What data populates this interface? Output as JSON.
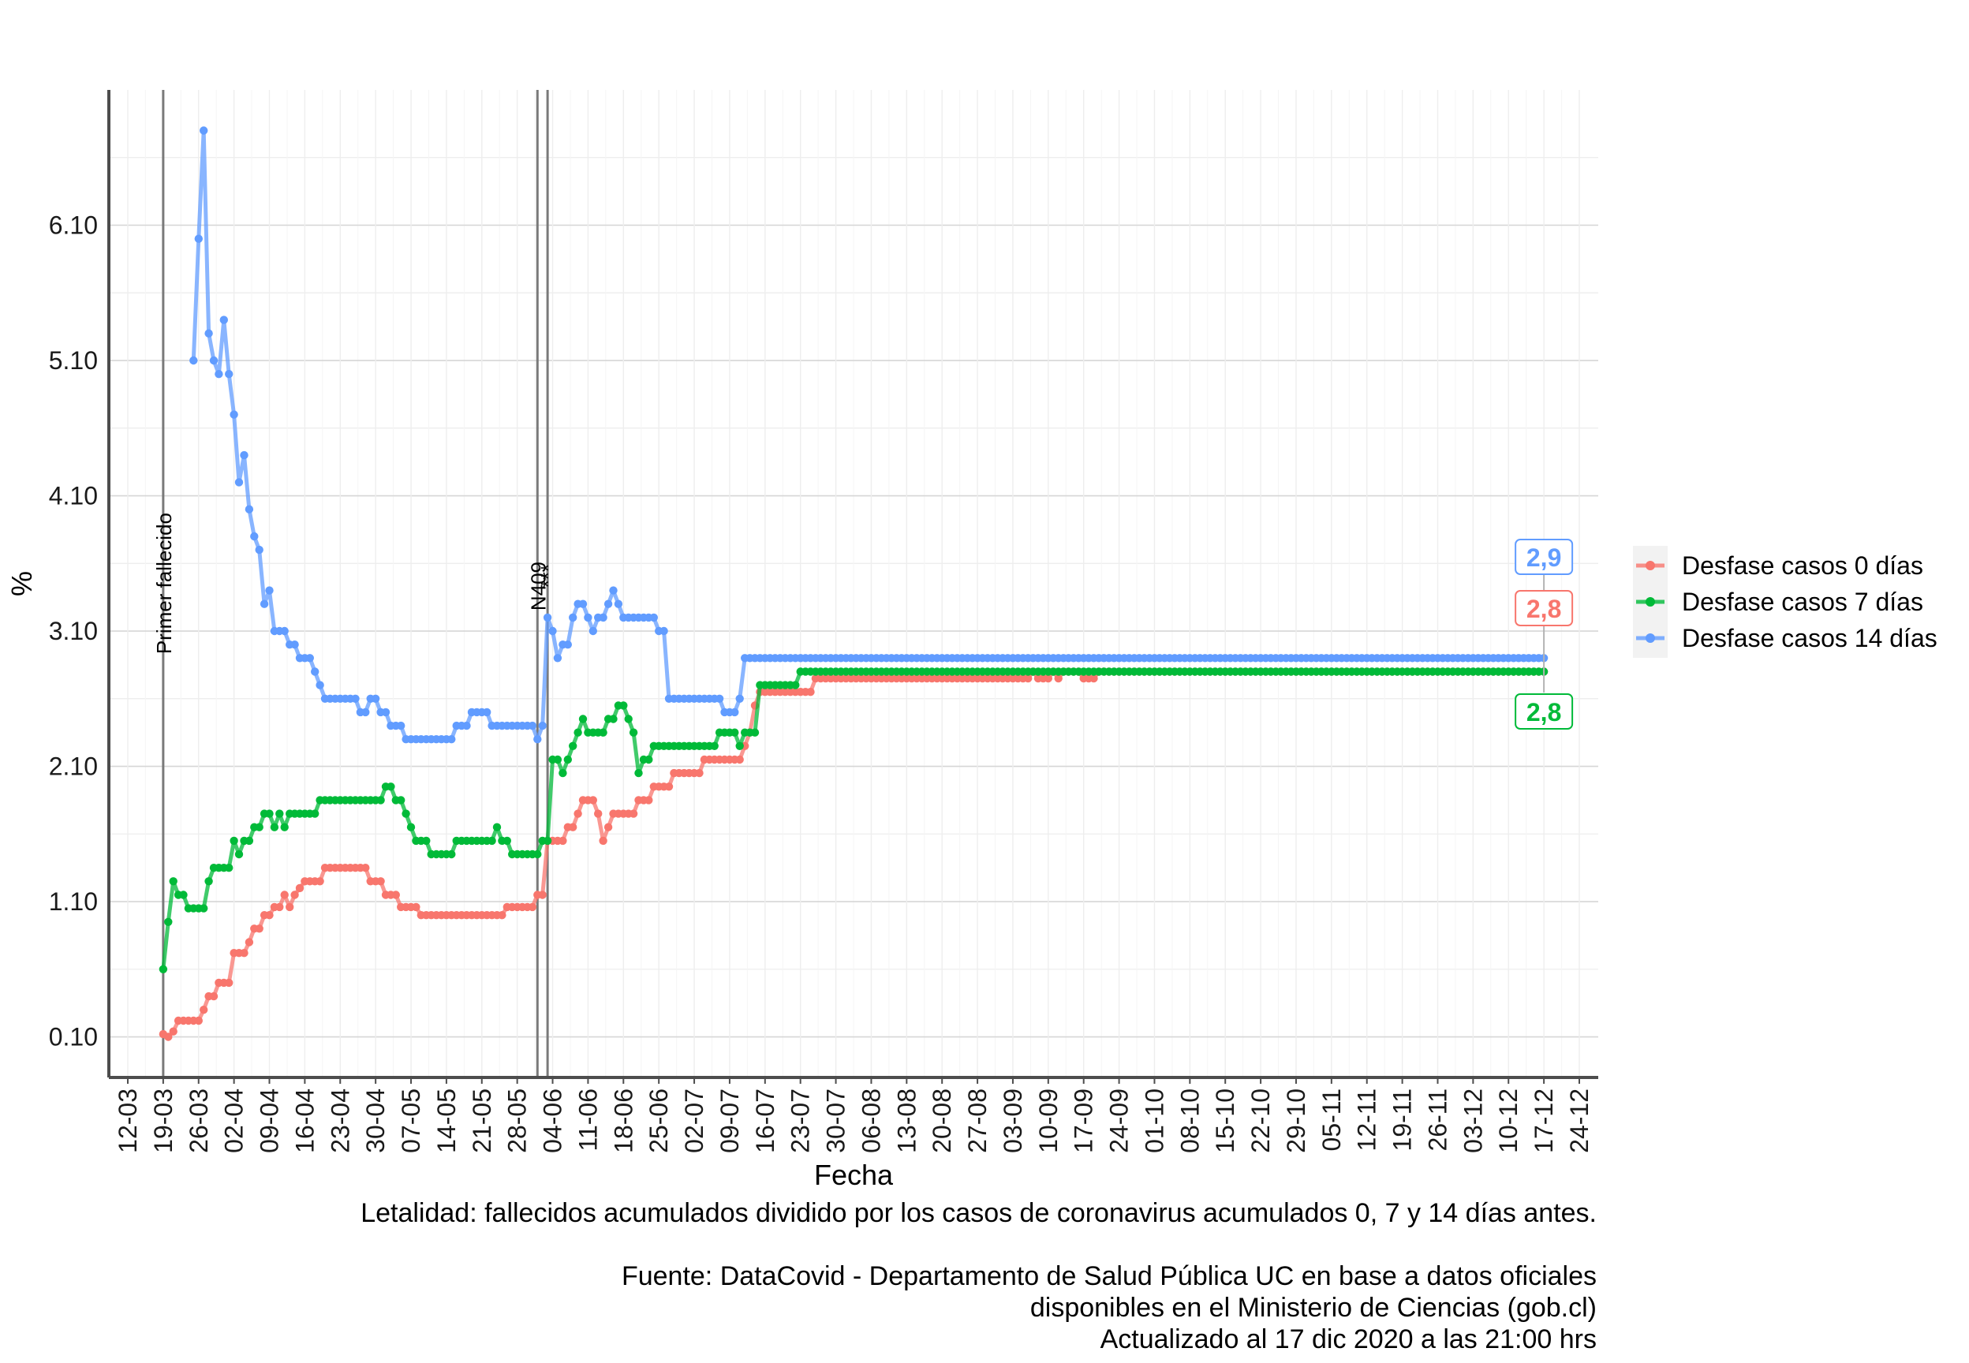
{
  "chart_data": {
    "type": "line",
    "title": "",
    "xlabel": "Fecha",
    "ylabel": "%",
    "ylim": [
      -0.2,
      7.1
    ],
    "y_ticks": [
      0.1,
      1.1,
      2.1,
      3.1,
      4.1,
      5.1,
      6.1
    ],
    "y_tick_labels": [
      "0.10",
      "1.10",
      "2.10",
      "3.10",
      "4.10",
      "5.10",
      "6.10"
    ],
    "x_tick_labels": [
      "12-03",
      "19-03",
      "26-03",
      "02-04",
      "09-04",
      "16-04",
      "23-04",
      "30-04",
      "07-05",
      "14-05",
      "21-05",
      "28-05",
      "04-06",
      "11-06",
      "18-06",
      "25-06",
      "02-07",
      "09-07",
      "16-07",
      "23-07",
      "30-07",
      "06-08",
      "13-08",
      "20-08",
      "27-08",
      "03-09",
      "10-09",
      "17-09",
      "24-09",
      "01-10",
      "08-10",
      "15-10",
      "22-10",
      "29-10",
      "05-11",
      "12-11",
      "19-11",
      "26-11",
      "03-12",
      "10-12",
      "17-12",
      "24-12"
    ],
    "x_start_date": "2020-03-12",
    "x_end_date": "2020-12-24",
    "grid": true,
    "legend_position": "right",
    "vlines": [
      {
        "date": "2020-03-19",
        "label": "Primer fallecido"
      },
      {
        "date": "2020-06-01",
        "label": "N409"
      },
      {
        "date": "2020-06-03",
        "label": "***"
      }
    ],
    "series": [
      {
        "name": "Desfase casos 0 días",
        "color": "#f8766d",
        "end_label": "2,8",
        "points": [
          [
            "2020-03-19",
            0.12
          ],
          [
            "2020-03-20",
            0.1
          ],
          [
            "2020-03-21",
            0.14
          ],
          [
            "2020-03-22",
            0.22
          ],
          [
            "2020-03-25",
            0.22
          ],
          [
            "2020-03-26",
            0.22
          ],
          [
            "2020-03-27",
            0.3
          ],
          [
            "2020-03-28",
            0.4
          ],
          [
            "2020-03-30",
            0.5
          ],
          [
            "2020-04-01",
            0.5
          ],
          [
            "2020-04-02",
            0.72
          ],
          [
            "2020-04-04",
            0.72
          ],
          [
            "2020-04-05",
            0.8
          ],
          [
            "2020-04-06",
            0.9
          ],
          [
            "2020-04-08",
            1.0
          ],
          [
            "2020-04-10",
            1.06
          ],
          [
            "2020-04-11",
            1.06
          ],
          [
            "2020-04-12",
            1.15
          ],
          [
            "2020-04-13",
            1.06
          ],
          [
            "2020-04-14",
            1.15
          ],
          [
            "2020-04-15",
            1.2
          ],
          [
            "2020-04-16",
            1.25
          ],
          [
            "2020-04-19",
            1.25
          ],
          [
            "2020-04-20",
            1.35
          ],
          [
            "2020-04-28",
            1.35
          ],
          [
            "2020-04-29",
            1.25
          ],
          [
            "2020-05-01",
            1.25
          ],
          [
            "2020-05-02",
            1.15
          ],
          [
            "2020-05-04",
            1.15
          ],
          [
            "2020-05-05",
            1.06
          ],
          [
            "2020-05-08",
            1.06
          ],
          [
            "2020-05-09",
            1.0
          ],
          [
            "2020-05-25",
            1.0
          ],
          [
            "2020-05-26",
            1.06
          ],
          [
            "2020-05-31",
            1.06
          ],
          [
            "2020-06-01",
            1.15
          ],
          [
            "2020-06-02",
            1.15
          ],
          [
            "2020-06-03",
            1.55
          ],
          [
            "2020-06-06",
            1.55
          ],
          [
            "2020-06-07",
            1.65
          ],
          [
            "2020-06-08",
            1.65
          ],
          [
            "2020-06-09",
            1.75
          ],
          [
            "2020-06-10",
            1.85
          ],
          [
            "2020-06-12",
            1.85
          ],
          [
            "2020-06-13",
            1.75
          ],
          [
            "2020-06-14",
            1.55
          ],
          [
            "2020-06-15",
            1.65
          ],
          [
            "2020-06-16",
            1.75
          ],
          [
            "2020-06-20",
            1.75
          ],
          [
            "2020-06-21",
            1.85
          ],
          [
            "2020-06-23",
            1.85
          ],
          [
            "2020-06-24",
            1.95
          ],
          [
            "2020-06-27",
            1.95
          ],
          [
            "2020-06-28",
            2.05
          ],
          [
            "2020-07-03",
            2.05
          ],
          [
            "2020-07-04",
            2.15
          ],
          [
            "2020-07-11",
            2.15
          ],
          [
            "2020-07-12",
            2.25
          ],
          [
            "2020-07-13",
            2.35
          ],
          [
            "2020-07-14",
            2.55
          ],
          [
            "2020-07-15",
            2.65
          ],
          [
            "2020-07-25",
            2.65
          ],
          [
            "2020-07-26",
            2.75
          ],
          [
            "2020-09-06",
            2.75
          ],
          [
            "2020-09-07",
            2.8
          ],
          [
            "2020-09-08",
            2.75
          ],
          [
            "2020-09-10",
            2.75
          ],
          [
            "2020-09-11",
            2.8
          ],
          [
            "2020-09-12",
            2.75
          ],
          [
            "2020-09-13",
            2.8
          ],
          [
            "2020-09-16",
            2.8
          ],
          [
            "2020-09-17",
            2.75
          ],
          [
            "2020-09-19",
            2.75
          ],
          [
            "2020-09-20",
            2.8
          ],
          [
            "2020-12-17",
            2.8
          ]
        ]
      },
      {
        "name": "Desfase casos 7 días",
        "color": "#00ba38",
        "end_label": "2,8",
        "points": [
          [
            "2020-03-19",
            0.6
          ],
          [
            "2020-03-20",
            0.95
          ],
          [
            "2020-03-21",
            1.25
          ],
          [
            "2020-03-22",
            1.15
          ],
          [
            "2020-03-23",
            1.15
          ],
          [
            "2020-03-24",
            1.05
          ],
          [
            "2020-03-27",
            1.05
          ],
          [
            "2020-03-28",
            1.25
          ],
          [
            "2020-03-29",
            1.35
          ],
          [
            "2020-04-01",
            1.35
          ],
          [
            "2020-04-02",
            1.55
          ],
          [
            "2020-04-03",
            1.45
          ],
          [
            "2020-04-04",
            1.55
          ],
          [
            "2020-04-05",
            1.55
          ],
          [
            "2020-04-06",
            1.65
          ],
          [
            "2020-04-07",
            1.65
          ],
          [
            "2020-04-08",
            1.75
          ],
          [
            "2020-04-09",
            1.75
          ],
          [
            "2020-04-10",
            1.65
          ],
          [
            "2020-04-11",
            1.75
          ],
          [
            "2020-04-12",
            1.65
          ],
          [
            "2020-04-13",
            1.75
          ],
          [
            "2020-04-18",
            1.75
          ],
          [
            "2020-04-19",
            1.85
          ],
          [
            "2020-05-01",
            1.85
          ],
          [
            "2020-05-02",
            1.95
          ],
          [
            "2020-05-03",
            1.95
          ],
          [
            "2020-05-04",
            1.85
          ],
          [
            "2020-05-05",
            1.85
          ],
          [
            "2020-05-06",
            1.75
          ],
          [
            "2020-05-07",
            1.65
          ],
          [
            "2020-05-08",
            1.55
          ],
          [
            "2020-05-10",
            1.55
          ],
          [
            "2020-05-11",
            1.45
          ],
          [
            "2020-05-15",
            1.45
          ],
          [
            "2020-05-16",
            1.55
          ],
          [
            "2020-05-23",
            1.55
          ],
          [
            "2020-05-24",
            1.65
          ],
          [
            "2020-05-25",
            1.55
          ],
          [
            "2020-05-26",
            1.55
          ],
          [
            "2020-05-27",
            1.45
          ],
          [
            "2020-06-01",
            1.45
          ],
          [
            "2020-06-02",
            1.55
          ],
          [
            "2020-06-03",
            1.55
          ],
          [
            "2020-06-04",
            2.15
          ],
          [
            "2020-06-05",
            2.15
          ],
          [
            "2020-06-06",
            2.05
          ],
          [
            "2020-06-07",
            2.15
          ],
          [
            "2020-06-08",
            2.25
          ],
          [
            "2020-06-09",
            2.35
          ],
          [
            "2020-06-10",
            2.45
          ],
          [
            "2020-06-11",
            2.35
          ],
          [
            "2020-06-14",
            2.35
          ],
          [
            "2020-06-15",
            2.45
          ],
          [
            "2020-06-16",
            2.45
          ],
          [
            "2020-06-17",
            2.55
          ],
          [
            "2020-06-18",
            2.55
          ],
          [
            "2020-06-19",
            2.45
          ],
          [
            "2020-06-20",
            2.35
          ],
          [
            "2020-06-21",
            2.05
          ],
          [
            "2020-06-22",
            2.15
          ],
          [
            "2020-06-23",
            2.15
          ],
          [
            "2020-06-24",
            2.25
          ],
          [
            "2020-07-06",
            2.25
          ],
          [
            "2020-07-07",
            2.35
          ],
          [
            "2020-07-10",
            2.35
          ],
          [
            "2020-07-11",
            2.25
          ],
          [
            "2020-07-12",
            2.35
          ],
          [
            "2020-07-14",
            2.35
          ],
          [
            "2020-07-15",
            2.7
          ],
          [
            "2020-07-22",
            2.7
          ],
          [
            "2020-07-23",
            2.8
          ],
          [
            "2020-12-17",
            2.8
          ]
        ]
      },
      {
        "name": "Desfase casos 14 días",
        "color": "#619cff",
        "end_label": "2,9",
        "points": [
          [
            "2020-03-25",
            5.1
          ],
          [
            "2020-03-26",
            6.0
          ],
          [
            "2020-03-27",
            6.8
          ],
          [
            "2020-03-28",
            5.3
          ],
          [
            "2020-03-29",
            5.1
          ],
          [
            "2020-03-30",
            5.0
          ],
          [
            "2020-03-31",
            5.4
          ],
          [
            "2020-04-01",
            5.0
          ],
          [
            "2020-04-02",
            4.7
          ],
          [
            "2020-04-03",
            4.2
          ],
          [
            "2020-04-04",
            4.4
          ],
          [
            "2020-04-05",
            4.0
          ],
          [
            "2020-04-06",
            3.8
          ],
          [
            "2020-04-07",
            3.7
          ],
          [
            "2020-04-08",
            3.3
          ],
          [
            "2020-04-09",
            3.4
          ],
          [
            "2020-04-10",
            3.1
          ],
          [
            "2020-04-12",
            3.1
          ],
          [
            "2020-04-13",
            3.0
          ],
          [
            "2020-04-14",
            3.0
          ],
          [
            "2020-04-15",
            2.9
          ],
          [
            "2020-04-17",
            2.9
          ],
          [
            "2020-04-18",
            2.8
          ],
          [
            "2020-04-19",
            2.7
          ],
          [
            "2020-04-20",
            2.6
          ],
          [
            "2020-04-26",
            2.6
          ],
          [
            "2020-04-27",
            2.5
          ],
          [
            "2020-04-28",
            2.5
          ],
          [
            "2020-04-29",
            2.6
          ],
          [
            "2020-04-30",
            2.6
          ],
          [
            "2020-05-01",
            2.5
          ],
          [
            "2020-05-02",
            2.5
          ],
          [
            "2020-05-03",
            2.4
          ],
          [
            "2020-05-05",
            2.4
          ],
          [
            "2020-05-06",
            2.3
          ],
          [
            "2020-05-15",
            2.3
          ],
          [
            "2020-05-16",
            2.4
          ],
          [
            "2020-05-18",
            2.4
          ],
          [
            "2020-05-19",
            2.5
          ],
          [
            "2020-05-22",
            2.5
          ],
          [
            "2020-05-23",
            2.4
          ],
          [
            "2020-05-31",
            2.4
          ],
          [
            "2020-06-01",
            2.3
          ],
          [
            "2020-06-02",
            2.4
          ],
          [
            "2020-06-03",
            3.2
          ],
          [
            "2020-06-04",
            3.1
          ],
          [
            "2020-06-05",
            2.9
          ],
          [
            "2020-06-06",
            3.0
          ],
          [
            "2020-06-07",
            3.0
          ],
          [
            "2020-06-08",
            3.2
          ],
          [
            "2020-06-09",
            3.3
          ],
          [
            "2020-06-10",
            3.3
          ],
          [
            "2020-06-11",
            3.2
          ],
          [
            "2020-06-12",
            3.1
          ],
          [
            "2020-06-13",
            3.2
          ],
          [
            "2020-06-14",
            3.2
          ],
          [
            "2020-06-15",
            3.3
          ],
          [
            "2020-06-16",
            3.4
          ],
          [
            "2020-06-17",
            3.3
          ],
          [
            "2020-06-18",
            3.2
          ],
          [
            "2020-06-24",
            3.2
          ],
          [
            "2020-06-25",
            3.1
          ],
          [
            "2020-06-26",
            3.1
          ],
          [
            "2020-06-27",
            2.6
          ],
          [
            "2020-07-07",
            2.6
          ],
          [
            "2020-07-08",
            2.5
          ],
          [
            "2020-07-10",
            2.5
          ],
          [
            "2020-07-11",
            2.6
          ],
          [
            "2020-07-12",
            2.9
          ],
          [
            "2020-12-17",
            2.9
          ]
        ]
      }
    ]
  },
  "caption": {
    "line1": "Letalidad: fallecidos acumulados dividido por los casos de coronavirus acumulados 0, 7 y 14 días antes.",
    "line2": "Fuente: DataCovid - Departamento de Salud Pública UC en base a datos oficiales",
    "line3": "disponibles en el Ministerio de Ciencias (gob.cl)",
    "line4": "Actualizado al 17 dic 2020 a las 21:00 hrs"
  }
}
